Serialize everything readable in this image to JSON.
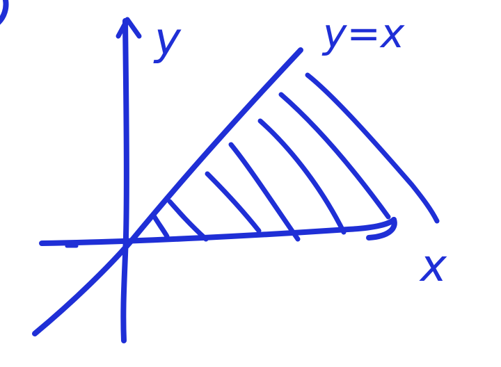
{
  "ink_color": "#1f2fd6",
  "labels": {
    "y_axis": "y",
    "x_axis": "x",
    "line": "y=x"
  },
  "description_free": true
}
